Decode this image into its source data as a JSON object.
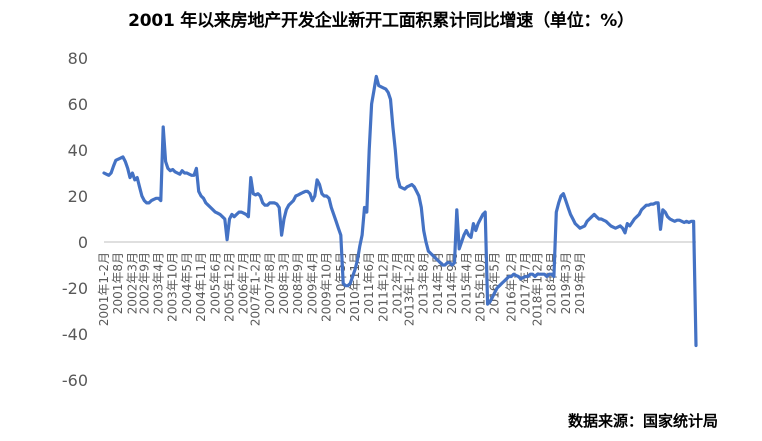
{
  "chart_data": {
    "type": "line",
    "title": "2001 年以来房地产开发企业新开工面积累计同比增速（单位：%）",
    "source": "数据来源：国家统计局",
    "xlabel": "",
    "ylabel": "",
    "ylim": [
      -60,
      80
    ],
    "yticks": [
      80,
      60,
      40,
      20,
      0,
      -20,
      -40,
      -60
    ],
    "grid": false,
    "legend": "none",
    "line_color": "#4472C4",
    "x_tick_labels": [
      "2001年1-2月",
      "2001年8月",
      "2002年3月",
      "2002年9月",
      "2003年4月",
      "2003年10月",
      "2004年5月",
      "2004年11月",
      "2005年6月",
      "2005年12月",
      "2006年7月",
      "2007年1-2月",
      "2007年8月",
      "2008年3月",
      "2008年9月",
      "2009年4月",
      "2009年10月",
      "2010年5月",
      "2010年11月",
      "2011年6月",
      "2011年12月",
      "2012年7月",
      "2013年1-2月",
      "2013年8月",
      "2014年3月",
      "2014年9月",
      "2015年4月",
      "2015年10月",
      "2016年5月",
      "2016年12月",
      "2017年7月",
      "2018年1-2月",
      "2018年8月",
      "2019年3月",
      "2019年9月"
    ],
    "x_tick_positions": [
      0,
      6,
      12,
      17,
      23,
      29,
      35,
      41,
      47,
      53,
      59,
      64,
      70,
      76,
      82,
      88,
      94,
      100,
      106,
      112,
      118,
      124,
      129,
      135,
      141,
      147,
      153,
      159,
      165,
      172,
      178,
      183,
      189,
      195,
      201
    ],
    "series": [
      {
        "values": [
          30,
          29.5,
          29,
          30,
          33,
          35.5,
          36,
          36.5,
          37,
          35,
          32,
          28,
          30,
          27,
          28,
          24,
          20,
          18,
          17,
          17,
          18,
          18.5,
          19,
          19,
          18,
          50,
          35,
          32,
          31,
          31.5,
          30.5,
          30,
          29.5,
          31,
          30,
          30,
          29.5,
          29,
          29,
          32,
          22,
          20,
          19,
          17,
          16,
          15,
          14,
          13,
          12.5,
          12,
          11,
          10,
          1,
          10,
          12,
          11,
          12,
          13,
          13,
          12.5,
          12,
          11,
          28,
          21,
          20.5,
          21,
          20,
          17,
          16,
          16,
          17,
          17,
          17,
          16.5,
          15,
          3,
          10,
          14,
          16,
          17,
          18,
          20,
          20.5,
          21,
          21.5,
          22,
          22,
          21,
          18,
          20,
          27,
          25,
          21,
          20,
          20,
          19,
          15,
          12,
          9,
          6,
          3,
          -18,
          -19,
          -19,
          -18,
          -15,
          -12,
          -8,
          -2,
          3,
          15,
          13,
          40,
          60,
          66,
          72,
          68,
          67.5,
          67,
          66.5,
          65,
          62,
          50,
          40,
          28,
          24,
          23.5,
          23,
          24,
          24.5,
          25,
          24,
          22,
          20,
          15,
          5,
          0,
          -4,
          -5,
          -6,
          -7,
          -8,
          -9,
          -10,
          -10,
          -9,
          -9,
          -10,
          -9,
          14,
          -3,
          0,
          3,
          5,
          3,
          2,
          8,
          5,
          8,
          10,
          12,
          13,
          -27,
          -26,
          -24,
          -22,
          -20,
          -19,
          -18,
          -17,
          -16,
          -15,
          -15,
          -14,
          -14.5,
          -15,
          -16,
          -15.5,
          -15,
          -15,
          -14,
          -14,
          -15,
          -14,
          -14,
          -14,
          -14,
          -15,
          -14,
          -14,
          -15,
          13,
          17,
          20,
          21,
          18,
          15,
          12,
          10,
          8,
          7,
          6,
          6.5,
          7,
          9,
          10,
          11,
          12,
          11,
          10,
          10,
          9.5,
          9,
          8,
          7,
          6.5,
          6,
          6.5,
          7,
          6,
          4,
          8,
          7,
          8.5,
          10,
          11,
          12,
          14,
          15,
          16,
          16,
          16.5,
          16.5,
          17,
          17,
          5.5,
          14,
          13,
          11,
          10,
          9.5,
          9,
          9.5,
          9.5,
          9,
          8.5,
          9,
          8.5,
          9,
          9,
          -45
        ]
      }
    ]
  }
}
